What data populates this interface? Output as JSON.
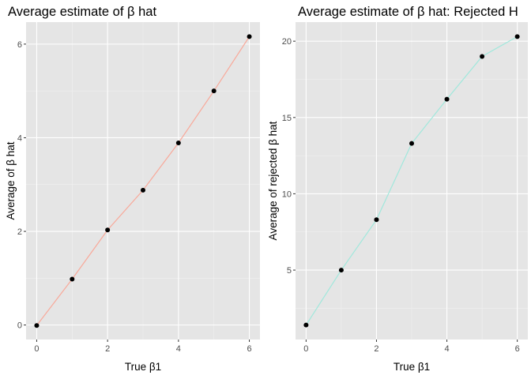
{
  "colors": {
    "left_line": "#f8a99a",
    "right_line": "#a0e8dc",
    "panel": "#e5e5e5"
  },
  "chart_data": [
    {
      "type": "line",
      "title": "Average estimate of β hat",
      "xlabel": "True β1",
      "ylabel": "Average of β hat",
      "x": [
        0,
        1,
        2,
        3,
        4,
        5,
        6
      ],
      "series": [
        {
          "values": [
            -0.01,
            0.98,
            2.03,
            2.88,
            3.89,
            5.0,
            6.16
          ],
          "color": "#f8a99a"
        }
      ],
      "xlim": [
        -0.3,
        6.3
      ],
      "ylim": [
        -0.31,
        6.47
      ],
      "xticks": [
        0,
        2,
        4,
        6
      ],
      "yticks": [
        0,
        2,
        4,
        6
      ],
      "xtick_labels": [
        "0",
        "2",
        "4",
        "6"
      ],
      "ytick_labels": [
        "0",
        "2",
        "4",
        "6"
      ],
      "grid": true,
      "legend": "none"
    },
    {
      "type": "line",
      "title": "Average estimate of β hat: Rejected H",
      "xlabel": "True β1",
      "ylabel": "Average of rejected β hat",
      "x": [
        0,
        1,
        2,
        3,
        4,
        5,
        6
      ],
      "series": [
        {
          "values": [
            1.4,
            5.0,
            8.3,
            13.3,
            16.2,
            19.0,
            20.3
          ],
          "color": "#a0e8dc"
        }
      ],
      "xlim": [
        -0.3,
        6.3
      ],
      "ylim": [
        0.45,
        21.25
      ],
      "xticks": [
        0,
        2,
        4,
        6
      ],
      "yticks": [
        5,
        10,
        15,
        20
      ],
      "xtick_labels": [
        "0",
        "2",
        "4",
        "6"
      ],
      "ytick_labels": [
        "5",
        "10",
        "15",
        "20"
      ],
      "grid": true,
      "legend": "none"
    }
  ]
}
